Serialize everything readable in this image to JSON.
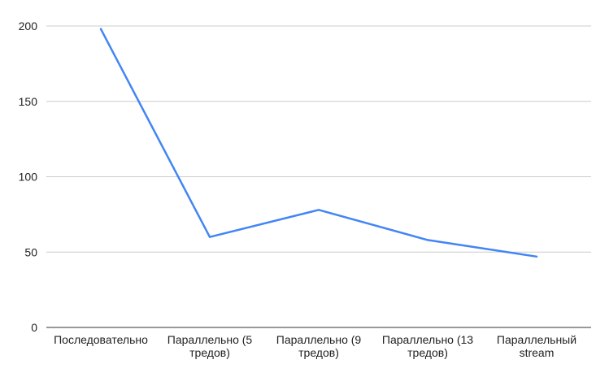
{
  "chart_data": {
    "type": "line",
    "title": "",
    "xlabel": "",
    "ylabel": "",
    "categories": [
      [
        "Последовательно"
      ],
      [
        "Параллельно (5",
        "тредов)"
      ],
      [
        "Параллельно (9",
        "тредов)"
      ],
      [
        "Параллельно (13",
        "тредов)"
      ],
      [
        "Параллельный",
        "stream"
      ]
    ],
    "series": [
      {
        "values": [
          198,
          60,
          78,
          58,
          47
        ],
        "color": "#4285f4"
      }
    ],
    "ylim": [
      0,
      200
    ],
    "yticks": [
      0,
      50,
      100,
      150,
      200
    ],
    "grid": true,
    "gridColor": "#cccccc",
    "axisColor": "#333333",
    "textColor": "#222222"
  }
}
